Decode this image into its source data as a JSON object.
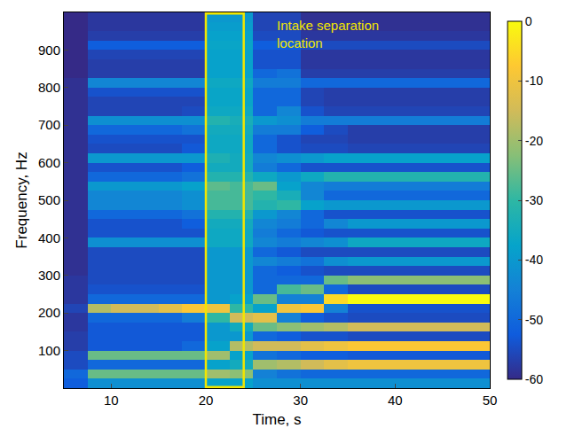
{
  "chart_data": {
    "type": "heatmap",
    "x_label": "Time, s",
    "y_label": "Frequency, Hz",
    "xlim": [
      5,
      50
    ],
    "xticks": [
      10,
      20,
      30,
      40,
      50
    ],
    "ylim": [
      0,
      1000
    ],
    "yticks": [
      100,
      200,
      300,
      400,
      500,
      600,
      700,
      800,
      900
    ],
    "grid": false,
    "colorbar": {
      "range": [
        -60,
        0
      ],
      "ticks": [
        0,
        -10,
        -20,
        -30,
        -40,
        -50,
        -60
      ]
    },
    "highlight": {
      "x": [
        20,
        24
      ],
      "color": "#f2e600"
    },
    "annotations": [
      {
        "lines": [
          "Intake separation",
          "location"
        ],
        "x": 27.3,
        "y": 990,
        "color": "#f2e600"
      }
    ],
    "cells": {
      "x": [
        6.25,
        8.75,
        11.25,
        13.75,
        16.25,
        18.75,
        21.25,
        23.75,
        26.25,
        28.75,
        31.25,
        33.75,
        36.25,
        38.75,
        41.25,
        43.75,
        46.25,
        48.75
      ],
      "y": [
        12.5,
        37.5,
        62.5,
        87.5,
        112.5,
        137.5,
        162.5,
        187.5,
        212.5,
        237.5,
        262.5,
        287.5,
        312.5,
        337.5,
        362.5,
        387.5,
        412.5,
        437.5,
        462.5,
        487.5,
        512.5,
        537.5,
        562.5,
        587.5,
        612.5,
        637.5,
        662.5,
        687.5,
        712.5,
        737.5,
        762.5,
        787.5,
        812.5,
        837.5,
        862.5,
        887.5,
        912.5,
        937.5,
        962.5,
        987.5
      ],
      "z": [
        [
          -52,
          -42,
          -42,
          -42,
          -42,
          -42,
          -38,
          -38,
          -42,
          -42,
          -42,
          -42,
          -42,
          -42,
          -42,
          -42,
          -42,
          -42
        ],
        [
          -50,
          -25,
          -25,
          -25,
          -25,
          -25,
          -20,
          -22,
          -45,
          -48,
          -50,
          -50,
          -50,
          -50,
          -50,
          -50,
          -50,
          -50
        ],
        [
          -55,
          -50,
          -50,
          -50,
          -50,
          -50,
          -38,
          -35,
          -20,
          -18,
          -15,
          -12,
          -10,
          -10,
          -10,
          -10,
          -10,
          -10
        ],
        [
          -55,
          -25,
          -25,
          -25,
          -25,
          -25,
          -20,
          -38,
          -48,
          -50,
          -52,
          -52,
          -53,
          -53,
          -53,
          -53,
          -53,
          -53
        ],
        [
          -57,
          -53,
          -53,
          -53,
          -53,
          -50,
          -38,
          -18,
          -15,
          -15,
          -12,
          -10,
          -8,
          -8,
          -8,
          -8,
          -8,
          -8
        ],
        [
          -57,
          -53,
          -53,
          -53,
          -53,
          -53,
          -40,
          -40,
          -50,
          -52,
          -54,
          -54,
          -55,
          -55,
          -55,
          -55,
          -55,
          -55
        ],
        [
          -58,
          -53,
          -53,
          -53,
          -53,
          -53,
          -40,
          -35,
          -25,
          -22,
          -20,
          -18,
          -15,
          -15,
          -15,
          -15,
          -15,
          -15
        ],
        [
          -58,
          -50,
          -50,
          -50,
          -50,
          -46,
          -30,
          -15,
          -12,
          -45,
          -52,
          -54,
          -55,
          -55,
          -55,
          -55,
          -55,
          -55
        ],
        [
          -56,
          -18,
          -15,
          -15,
          -12,
          -8,
          -10,
          -30,
          -38,
          -10,
          -8,
          -45,
          -54,
          -54,
          -54,
          -54,
          -54,
          -54
        ],
        [
          -58,
          -50,
          -50,
          -50,
          -50,
          -50,
          -40,
          -38,
          -25,
          -45,
          -45,
          -5,
          0,
          0,
          0,
          0,
          0,
          0
        ],
        [
          -58,
          -54,
          -54,
          -54,
          -54,
          -54,
          -40,
          -40,
          -50,
          -28,
          -25,
          -50,
          -55,
          -55,
          -55,
          -55,
          -55,
          -55
        ],
        [
          -58,
          -55,
          -55,
          -55,
          -55,
          -55,
          -40,
          -40,
          -50,
          -50,
          -50,
          -25,
          -22,
          -22,
          -22,
          -22,
          -22,
          -22
        ],
        [
          -59,
          -55,
          -55,
          -55,
          -55,
          -55,
          -40,
          -40,
          -50,
          -52,
          -54,
          -55,
          -55,
          -55,
          -55,
          -55,
          -55,
          -55
        ],
        [
          -59,
          -55,
          -55,
          -55,
          -55,
          -55,
          -40,
          -40,
          -44,
          -46,
          -48,
          -42,
          -40,
          -40,
          -40,
          -40,
          -40,
          -40
        ],
        [
          -59,
          -55,
          -55,
          -55,
          -55,
          -55,
          -40,
          -40,
          -50,
          -53,
          -55,
          -55,
          -55,
          -55,
          -55,
          -55,
          -55,
          -55
        ],
        [
          -59,
          -42,
          -42,
          -42,
          -42,
          -42,
          -36,
          -36,
          -44,
          -46,
          -44,
          -42,
          -36,
          -36,
          -36,
          -36,
          -36,
          -36
        ],
        [
          -59,
          -54,
          -54,
          -54,
          -54,
          -54,
          -36,
          -36,
          -46,
          -50,
          -53,
          -54,
          -54,
          -54,
          -54,
          -54,
          -54,
          -54
        ],
        [
          -59,
          -54,
          -54,
          -54,
          -54,
          -52,
          -35,
          -35,
          -44,
          -46,
          -50,
          -44,
          -40,
          -40,
          -40,
          -40,
          -40,
          -40
        ],
        [
          -59,
          -50,
          -50,
          -50,
          -50,
          -48,
          -32,
          -32,
          -40,
          -44,
          -50,
          -54,
          -54,
          -54,
          -54,
          -54,
          -54,
          -54
        ],
        [
          -59,
          -44,
          -44,
          -44,
          -44,
          -42,
          -28,
          -28,
          -32,
          -30,
          -38,
          -40,
          -40,
          -40,
          -40,
          -40,
          -40,
          -40
        ],
        [
          -59,
          -44,
          -44,
          -44,
          -44,
          -42,
          -28,
          -28,
          -30,
          -34,
          -44,
          -50,
          -50,
          -50,
          -50,
          -50,
          -50,
          -50
        ],
        [
          -59,
          -40,
          -40,
          -40,
          -40,
          -38,
          -26,
          -28,
          -25,
          -38,
          -44,
          -46,
          -46,
          -46,
          -46,
          -46,
          -46,
          -46
        ],
        [
          -59,
          -50,
          -50,
          -50,
          -50,
          -48,
          -32,
          -32,
          -36,
          -40,
          -36,
          -32,
          -32,
          -32,
          -32,
          -32,
          -32,
          -32
        ],
        [
          -59,
          -54,
          -54,
          -54,
          -54,
          -52,
          -35,
          -35,
          -46,
          -50,
          -54,
          -54,
          -54,
          -54,
          -54,
          -54,
          -54,
          -54
        ],
        [
          -59,
          -40,
          -40,
          -40,
          -40,
          -40,
          -33,
          -35,
          -44,
          -42,
          -40,
          -38,
          -38,
          -38,
          -38,
          -38,
          -38,
          -38
        ],
        [
          -59,
          -55,
          -55,
          -55,
          -55,
          -53,
          -36,
          -36,
          -50,
          -54,
          -55,
          -55,
          -56,
          -56,
          -56,
          -56,
          -56,
          -56
        ],
        [
          -59,
          -54,
          -54,
          -54,
          -54,
          -54,
          -36,
          -36,
          -50,
          -54,
          -56,
          -56,
          -57,
          -57,
          -57,
          -57,
          -57,
          -57
        ],
        [
          -59,
          -50,
          -50,
          -50,
          -50,
          -48,
          -35,
          -35,
          -46,
          -46,
          -52,
          -55,
          -57,
          -57,
          -57,
          -57,
          -57,
          -57
        ],
        [
          -59,
          -42,
          -42,
          -42,
          -42,
          -42,
          -32,
          -34,
          -40,
          -42,
          -46,
          -46,
          -46,
          -46,
          -46,
          -46,
          -46,
          -46
        ],
        [
          -59,
          -56,
          -56,
          -56,
          -56,
          -55,
          -36,
          -36,
          -50,
          -44,
          -54,
          -56,
          -56,
          -56,
          -56,
          -56,
          -56,
          -56
        ],
        [
          -59,
          -56,
          -56,
          -56,
          -56,
          -56,
          -37,
          -37,
          -50,
          -50,
          -56,
          -57,
          -57,
          -57,
          -57,
          -57,
          -57,
          -57
        ],
        [
          -59,
          -54,
          -54,
          -54,
          -54,
          -54,
          -37,
          -37,
          -50,
          -50,
          -56,
          -57,
          -57,
          -57,
          -57,
          -57,
          -57,
          -57
        ],
        [
          -59,
          -44,
          -44,
          -44,
          -44,
          -44,
          -36,
          -36,
          -46,
          -46,
          -50,
          -50,
          -50,
          -50,
          -50,
          -50,
          -50,
          -50
        ],
        [
          -60,
          -57,
          -57,
          -57,
          -57,
          -57,
          -38,
          -38,
          -50,
          -48,
          -57,
          -57,
          -57,
          -57,
          -57,
          -57,
          -57,
          -57
        ],
        [
          -60,
          -57,
          -57,
          -57,
          -57,
          -57,
          -38,
          -38,
          -54,
          -54,
          -58,
          -58,
          -58,
          -58,
          -58,
          -58,
          -58,
          -58
        ],
        [
          -60,
          -56,
          -56,
          -56,
          -56,
          -56,
          -38,
          -38,
          -54,
          -54,
          -58,
          -58,
          -58,
          -58,
          -58,
          -58,
          -58,
          -58
        ],
        [
          -60,
          -52,
          -52,
          -52,
          -52,
          -52,
          -37,
          -37,
          -52,
          -52,
          -55,
          -55,
          -55,
          -55,
          -55,
          -55,
          -55,
          -55
        ],
        [
          -60,
          -57,
          -57,
          -57,
          -57,
          -57,
          -38,
          -38,
          -55,
          -55,
          -58,
          -58,
          -58,
          -58,
          -58,
          -58,
          -58,
          -58
        ],
        [
          -60,
          -58,
          -58,
          -58,
          -58,
          -58,
          -39,
          -39,
          -56,
          -56,
          -59,
          -59,
          -59,
          -59,
          -59,
          -59,
          -59,
          -59
        ],
        [
          -60,
          -58,
          -58,
          -58,
          -58,
          -58,
          -40,
          -40,
          -56,
          -56,
          -59,
          -59,
          -59,
          -59,
          -59,
          -59,
          -59,
          -59
        ]
      ]
    }
  }
}
